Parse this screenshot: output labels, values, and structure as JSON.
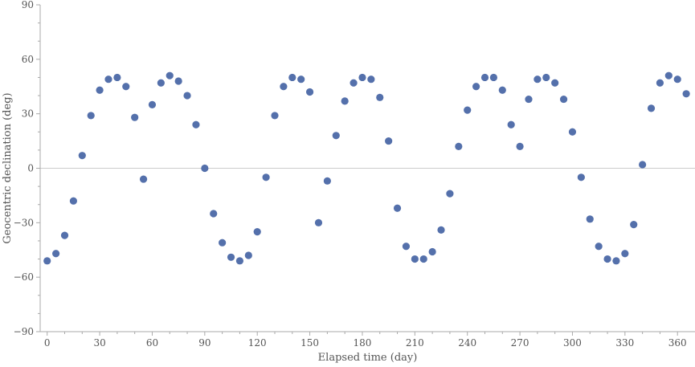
{
  "chart_data": {
    "type": "scatter",
    "xlabel": "Elapsed time (day)",
    "ylabel": "Geocentric declination (deg)",
    "xlim": [
      -4,
      370
    ],
    "ylim": [
      -90,
      90
    ],
    "x_ticks": [
      0,
      30,
      60,
      90,
      120,
      150,
      180,
      210,
      240,
      270,
      300,
      330,
      360
    ],
    "y_ticks": [
      -90,
      -60,
      -30,
      0,
      30,
      60,
      90
    ],
    "x_tick_labels": [
      "0",
      "30",
      "60",
      "90",
      "120",
      "150",
      "180",
      "210",
      "240",
      "270",
      "300",
      "330",
      "360"
    ],
    "y_tick_labels": [
      "−90",
      "−60",
      "−30",
      "0",
      "30",
      "60",
      "90"
    ],
    "zero_line": true,
    "grid": false,
    "colors": {
      "marker": "#5470ab",
      "axis": "#aaaaaa",
      "zero_line": "#cccccc"
    },
    "series": [
      {
        "x": [
          0,
          5,
          10,
          15,
          20,
          25,
          30,
          35,
          40,
          45,
          50,
          55,
          60,
          65,
          70,
          75,
          80,
          85,
          90,
          95,
          100,
          105,
          110,
          115,
          120,
          125,
          130,
          135,
          140,
          145,
          150,
          155,
          160,
          165,
          170,
          175,
          180,
          185,
          190,
          195,
          200,
          205,
          210,
          215,
          220,
          225,
          230,
          235,
          240,
          245,
          250,
          255,
          260,
          265,
          270,
          275,
          280,
          285,
          290,
          295,
          300,
          305,
          310,
          315,
          320,
          325,
          330,
          335,
          340,
          345,
          350,
          355,
          360,
          365
        ],
        "y": [
          -51,
          -47,
          -37,
          -18,
          7,
          29,
          43,
          49,
          50,
          45,
          28,
          -6,
          35,
          47,
          51,
          48,
          40,
          24,
          0,
          -25,
          -41,
          -49,
          -51,
          -48,
          -35,
          -5,
          29,
          45,
          50,
          49,
          42,
          -30,
          -7,
          18,
          37,
          47,
          50,
          49,
          39,
          15,
          -22,
          -43,
          -50,
          -50,
          -46,
          -34,
          -14,
          12,
          32,
          45,
          50,
          50,
          43,
          24,
          12,
          38,
          49,
          50,
          47,
          38,
          20,
          -5,
          -28,
          -43,
          -50,
          -51,
          -47,
          -31,
          2,
          33,
          47,
          51,
          49,
          41
        ]
      }
    ]
  }
}
